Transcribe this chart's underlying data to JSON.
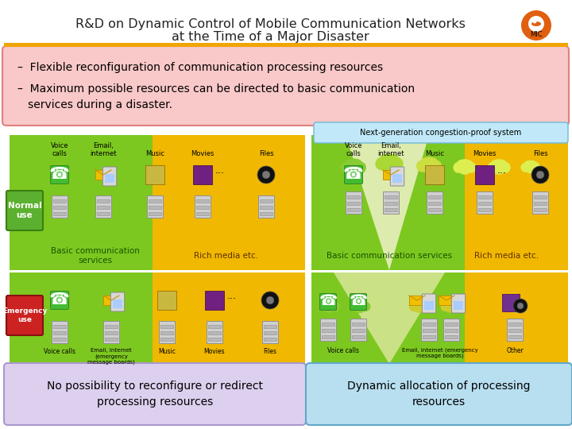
{
  "title_line1": "R&D on Dynamic Control of Mobile Communication Networks",
  "title_line2": "at the Time of a Major Disaster",
  "bg_color": "#ffffff",
  "orange_bar_color": "#f0a500",
  "bullet1": "–  Flexible reconfiguration of communication processing resources",
  "bullet2": "–  Maximum possible resources can be directed to basic communication\n   services during a disaster.",
  "bullet_box_color": "#f9c8c8",
  "bullet_box_edge": "#e08080",
  "next_gen_label": "Next-generation congestion-proof system",
  "next_gen_box_color": "#c0e8f8",
  "next_gen_box_edge": "#70b8d8",
  "normal_use_label": "Normal\nuse",
  "normal_use_color": "#5cb030",
  "emergency_use_label": "Emergency\nuse",
  "emergency_use_color": "#cc2222",
  "green_color": "#7dc820",
  "yellow_color": "#f0b800",
  "light_green": "#b8e050",
  "light_yellow": "#e8d060",
  "bottom_left_color": "#ddd0ee",
  "bottom_right_color": "#b8dff0",
  "bottom_box_edge_left": "#a898cc",
  "bottom_box_edge_right": "#60a8c8",
  "bottom_left_label": "No possibility to reconfigure or redirect\nprocessing resources",
  "bottom_right_label": "Dynamic allocation of processing\nresources",
  "dots": "...",
  "mic_color": "#e06010",
  "phone_color": "#44bb33",
  "email_color": "#f0c000",
  "normal_labels_left": [
    "Voice\ncalls",
    "Email,\ninternet",
    "Music",
    "Movies",
    "Files"
  ],
  "emerg_labels_left": [
    "Voice calls",
    "Email, internet\n(emergency\nmessage boards)",
    "Music",
    "Movies",
    "Files"
  ],
  "normal_labels_right": [
    "Voice\ncalls",
    "Email,\ninternet",
    "Music",
    "Movies",
    "Files"
  ],
  "emerg_labels_right": [
    "Voice calls",
    "Email, internet (emergency\nmessage boards)",
    "Other"
  ]
}
